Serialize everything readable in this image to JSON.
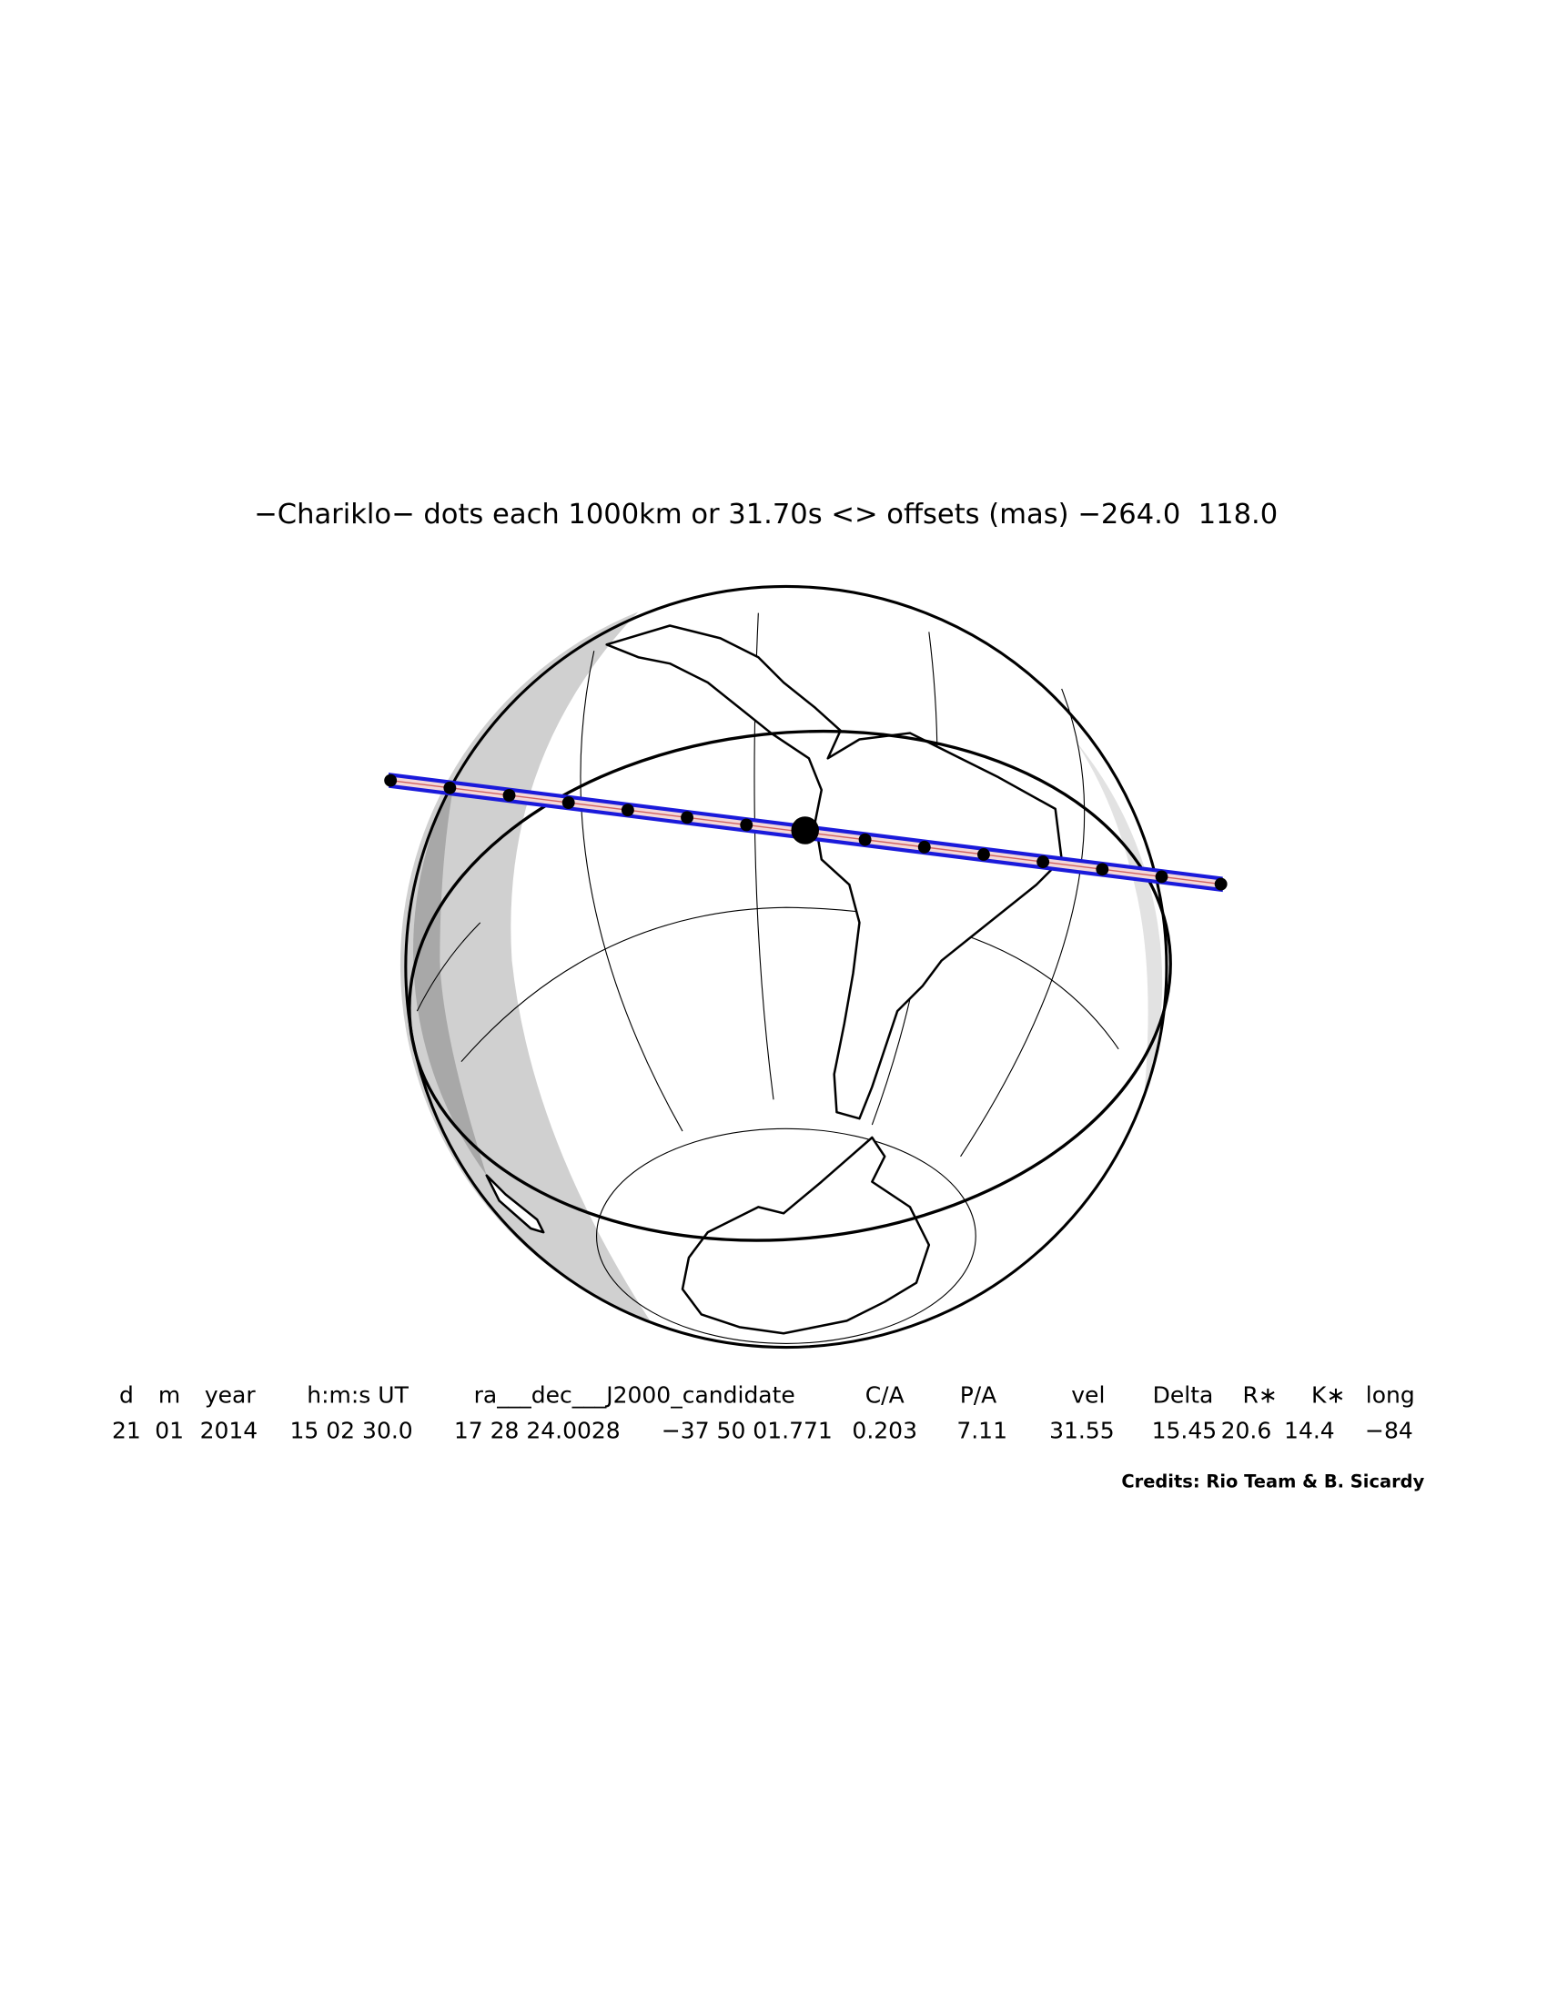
{
  "title": "−Chariklo− dots each 1000km or 31.70s <> offsets (mas) −264.0  118.0",
  "table": {
    "headers": [
      "d",
      "m",
      "year",
      "h:m:s UT",
      "ra___dec___J2000_candidate",
      "C/A",
      "P/A",
      "vel",
      "Delta",
      "R∗",
      "K∗",
      "long"
    ],
    "rows": [
      [
        "21",
        "01",
        "2014",
        "15 02 30.0",
        "17 28 24.0028",
        "−37 50 01.771",
        "0.203",
        "7.11",
        "31.55",
        "15.45",
        "20.6",
        "14.4",
        "−84"
      ]
    ]
  },
  "credits": "Credits: Rio Team & B. Sicardy"
}
